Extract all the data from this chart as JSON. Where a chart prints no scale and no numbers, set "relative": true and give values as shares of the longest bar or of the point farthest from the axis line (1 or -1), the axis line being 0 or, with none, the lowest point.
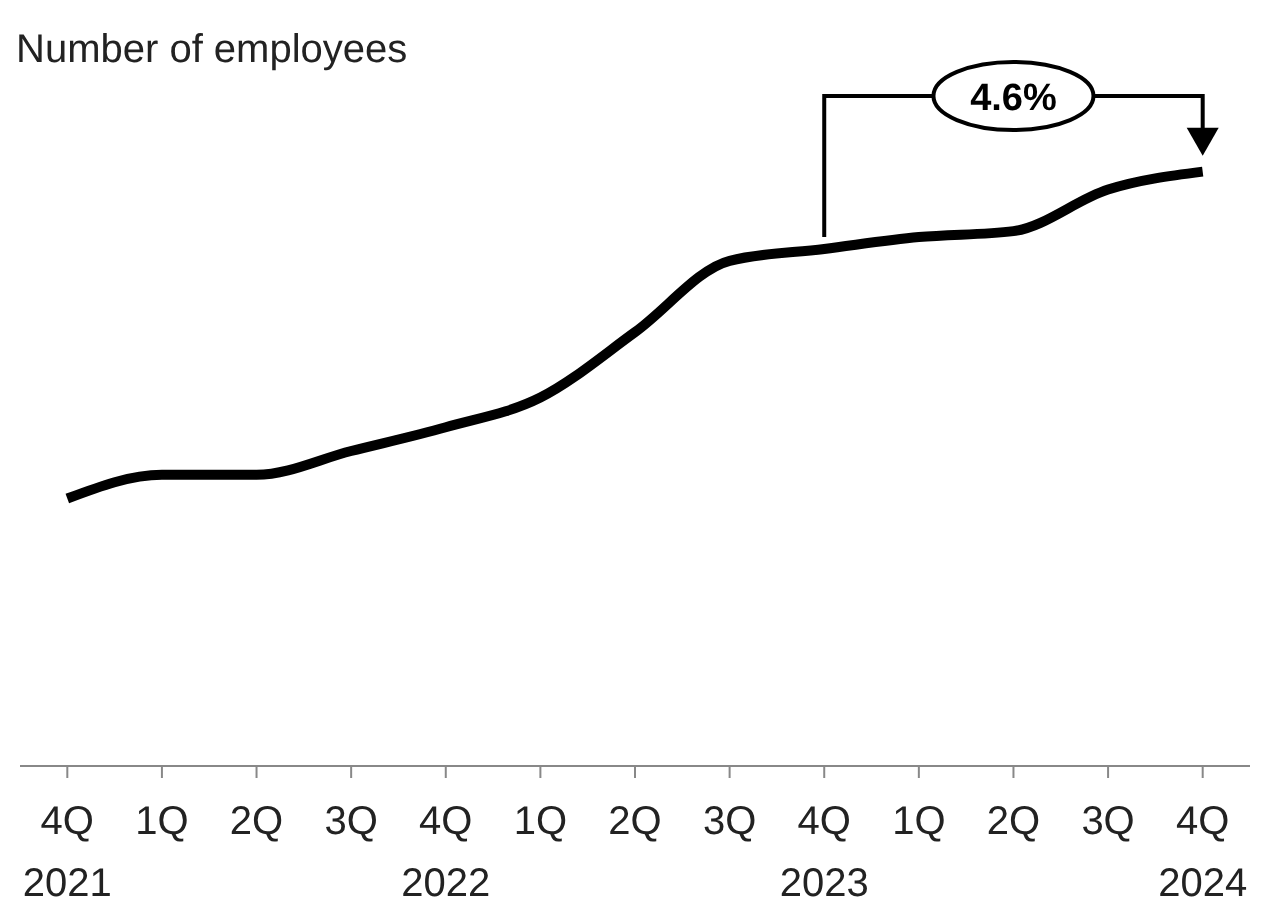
{
  "chart_data": {
    "type": "line",
    "title": "Number of employees",
    "categories": [
      "4Q\n2021",
      "1Q",
      "2Q",
      "3Q",
      "4Q\n2022",
      "1Q",
      "2Q",
      "3Q",
      "4Q\n2023",
      "1Q",
      "2Q",
      "3Q",
      "4Q\n2024"
    ],
    "series": [
      {
        "color": "#000000",
        "values": [
          0.45,
          0.49,
          0.49,
          0.53,
          0.57,
          0.62,
          0.73,
          0.85,
          0.87,
          0.89,
          0.9,
          0.97,
          1
        ]
      }
    ],
    "relative": true,
    "annotations": [
      "4.6%"
    ],
    "marker": "none",
    "line_style": "solid"
  }
}
